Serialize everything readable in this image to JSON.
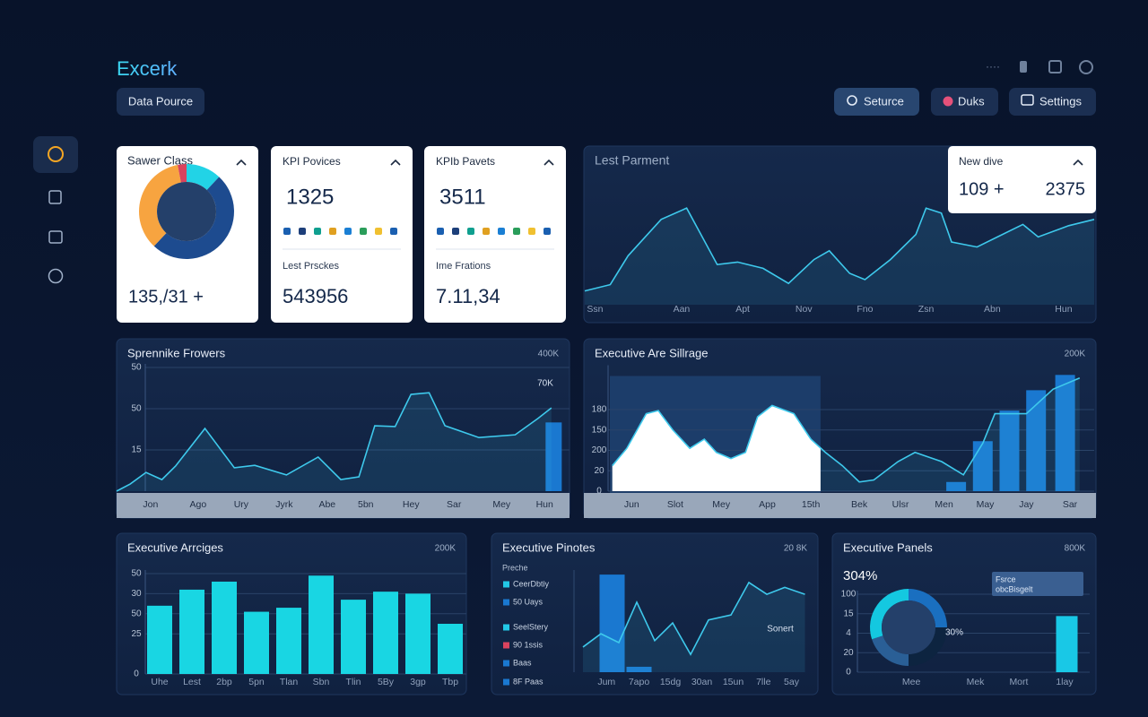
{
  "header": {
    "title": "Excerk",
    "data_source": "Data Pource",
    "buttons": [
      "Seturce",
      "Duks",
      "Settings"
    ]
  },
  "kpis": [
    {
      "title": "KPI Povices",
      "value": "1325",
      "subtitle": "Lest Prsckes",
      "subvalue": "543956"
    },
    {
      "title": "KPIb Pavets",
      "value": "3511",
      "subtitle": "Ime Frations",
      "subvalue": "7.11,34"
    }
  ],
  "chart_data": [
    {
      "type": "pie",
      "title": "Sawer Class",
      "caption": "135,/31 +",
      "values": [
        12,
        50,
        35,
        3
      ],
      "colors": [
        "#22d3e6",
        "#1d4b8f",
        "#f7a440",
        "#d9435e"
      ]
    },
    {
      "type": "line",
      "title": "Lest Parment",
      "color": "#3ec9ec",
      "card": {
        "title": "New dive",
        "values": [
          "109 +",
          "2375"
        ]
      },
      "x": [
        0,
        5,
        8.5,
        15,
        20,
        26,
        30,
        35,
        40,
        45,
        48,
        52,
        55,
        60,
        65,
        67,
        70,
        72,
        77,
        81,
        86,
        89,
        95,
        100
      ],
      "values": [
        11,
        16,
        39,
        68,
        77,
        32,
        34,
        29,
        17,
        36,
        43,
        25,
        20,
        36,
        56,
        77,
        73,
        50,
        46,
        54,
        64,
        54,
        63,
        68
      ],
      "xlim": [
        0,
        100
      ],
      "ylim": [
        0,
        100
      ],
      "xticks": [
        {
          "value": 2,
          "label": "Ssn"
        },
        {
          "value": 19,
          "label": "Aan"
        },
        {
          "value": 31,
          "label": "Apt"
        },
        {
          "value": 43,
          "label": "Nov"
        },
        {
          "value": 55,
          "label": "Fno"
        },
        {
          "value": 67,
          "label": "Zsn"
        },
        {
          "value": 80,
          "label": "Abn"
        },
        {
          "value": 94,
          "label": "Hun"
        }
      ]
    },
    {
      "type": "line",
      "title": "Sprennike Frowers",
      "corner": "400K",
      "annotations": [
        "70K"
      ],
      "color": "#3ec9ec",
      "bar_color": "#1a78d0",
      "grid": true,
      "x": [
        0,
        3,
        6.5,
        10,
        13,
        19.5,
        26,
        30.5,
        37.5,
        44.5,
        49.5,
        53.5,
        57,
        61.5,
        65,
        69,
        72.5,
        80,
        88,
        93,
        96
      ],
      "values": [
        0,
        2.6,
        6.8,
        4.2,
        9.1,
        22.8,
        8.5,
        9.4,
        5.9,
        12.4,
        4.2,
        5.2,
        23.8,
        23.5,
        35.2,
        35.8,
        23.8,
        19.5,
        20.5,
        26.4,
        30.3
      ],
      "bars": {
        "x": [
          96.5
        ],
        "values": [
          25
        ]
      },
      "xlim": [
        0,
        100
      ],
      "ylim": [
        0,
        45
      ],
      "yticks": [
        15,
        {
          "value": 30,
          "label": "50"
        },
        {
          "value": 45,
          "label": "50"
        }
      ],
      "xticks": [
        {
          "value": 7.5,
          "label": "Jon"
        },
        {
          "value": 18,
          "label": "Ago"
        },
        {
          "value": 27.5,
          "label": "Ury"
        },
        {
          "value": 37,
          "label": "Jyrk"
        },
        {
          "value": 46.5,
          "label": "Abe"
        },
        {
          "value": 55,
          "label": "5bn"
        },
        {
          "value": 65,
          "label": "Hey"
        },
        {
          "value": 74.5,
          "label": "Sar"
        },
        {
          "value": 85,
          "label": "Mey"
        },
        {
          "value": 94.5,
          "label": "Hun"
        }
      ]
    },
    {
      "type": "line",
      "title": "Executive Are Sillrage",
      "corner": "200K",
      "color": "#3ec9ec",
      "bar_color": "#1a78d0",
      "grid": true,
      "highlight": [
        0,
        43.5
      ],
      "x": [
        0.5,
        3.5,
        7.5,
        10,
        13,
        16.5,
        19.5,
        22,
        25,
        28,
        30.5,
        33.5,
        38,
        41.5,
        44.5,
        48,
        51.5,
        54.5,
        59.5,
        63,
        68.5,
        73,
        77,
        79.5,
        86,
        91.5,
        97
      ],
      "values": [
        25,
        42,
        76,
        79,
        60,
        42,
        51,
        38,
        32,
        38,
        73,
        84,
        76,
        51,
        38,
        25,
        9,
        11,
        29,
        38,
        29,
        16,
        47,
        76,
        76,
        100,
        111
      ],
      "bars": {
        "x": [
          71.5,
          77,
          82.5,
          88,
          94
        ],
        "values": [
          9,
          49,
          79,
          99,
          114
        ]
      },
      "xlim": [
        0,
        100
      ],
      "ylim": [
        0,
        120
      ],
      "yticks": [
        0,
        20,
        {
          "value": 40,
          "label": "200"
        },
        {
          "value": 60,
          "label": "150"
        },
        {
          "value": 80,
          "label": "180"
        }
      ],
      "xticks": [
        {
          "value": 4.5,
          "label": "Jun"
        },
        {
          "value": 13.5,
          "label": "Slot"
        },
        {
          "value": 23,
          "label": "Mey"
        },
        {
          "value": 32.5,
          "label": "App"
        },
        {
          "value": 41.5,
          "label": "15th"
        },
        {
          "value": 51.5,
          "label": "Bek"
        },
        {
          "value": 60,
          "label": "Ulsr"
        },
        {
          "value": 69,
          "label": "Men"
        },
        {
          "value": 77.5,
          "label": "May"
        },
        {
          "value": 86,
          "label": "Jay"
        },
        {
          "value": 95,
          "label": "Sar"
        }
      ]
    },
    {
      "type": "bar",
      "title": "Executive Arrciges",
      "corner": "200K",
      "color": "#19d6e3",
      "grid": true,
      "categories": [
        "Uhe",
        "Lest",
        "2bp",
        "5pn",
        "Tlan",
        "Sbn",
        "Tlin",
        "5By",
        "3gp",
        "Tbp"
      ],
      "values": [
        34,
        42,
        46,
        31,
        33,
        49,
        37,
        41,
        40,
        25
      ],
      "ylim": [
        0,
        50
      ],
      "yticks": [
        0,
        {
          "value": 20,
          "label": "25"
        },
        {
          "value": 30,
          "label": "50"
        },
        {
          "value": 40,
          "label": "30"
        },
        50
      ]
    },
    {
      "type": "line",
      "title": "Executive Pinotes",
      "corner": "20 8K",
      "annotations": [
        "Sonert"
      ],
      "color": "#3ec9ec",
      "bar_color": "#1a78d0",
      "legend": {
        "title": "Preche",
        "items": [
          {
            "name": "CeerDbtiy",
            "color": "#22c8e6"
          },
          {
            "name": "50 Uays",
            "color": "#1a78d0"
          },
          {
            "name": "SeelStery",
            "color": "#22c8e6"
          },
          {
            "name": "90 1ssis",
            "color": "#d9435e"
          },
          {
            "name": "Baas",
            "color": "#1a78d0"
          },
          {
            "name": "8F Paas",
            "color": "#1a78d0"
          }
        ]
      },
      "x": [
        0,
        8,
        16,
        24,
        32,
        40,
        48,
        56,
        66,
        74,
        82,
        90,
        99
      ],
      "values": [
        25.5,
        39,
        30,
        71,
        32,
        50,
        18,
        53,
        58,
        91,
        79,
        86,
        79
      ],
      "bars": {
        "x": [
          13,
          25
        ],
        "values": [
          99,
          5.5
        ]
      },
      "xlim": [
        0,
        100
      ],
      "ylim": [
        0,
        100
      ],
      "xticks": [
        {
          "value": 10.5,
          "label": "Jum"
        },
        {
          "value": 25,
          "label": "7apo"
        },
        {
          "value": 39,
          "label": "15dg"
        },
        {
          "value": 53,
          "label": "30an"
        },
        {
          "value": 67,
          "label": "15un"
        },
        {
          "value": 80.5,
          "label": "7lle"
        },
        {
          "value": 93,
          "label": "5ay"
        }
      ]
    },
    {
      "type": "bar",
      "title": "Executive Panels",
      "corner": "800K",
      "headline": "304%",
      "annotations": [
        "30%"
      ],
      "tooltip": [
        "Fsrce",
        "obcBisgelt"
      ],
      "bar_color": "#19c8e6",
      "grid": true,
      "donut": {
        "values": [
          25,
          25,
          20,
          30
        ],
        "colors": [
          "#1a6fc0",
          "#0d2440",
          "#2a5f96",
          "#14c8e0"
        ]
      },
      "bars": {
        "x": [
          90
        ],
        "values": [
          72
        ]
      },
      "xlim": [
        0,
        100
      ],
      "ylim": [
        0,
        100
      ],
      "yticks": [
        0,
        {
          "value": 25,
          "label": "20"
        },
        {
          "value": 50,
          "label": "4"
        },
        {
          "value": 75,
          "label": "15"
        },
        100
      ],
      "xticks": [
        {
          "value": 22,
          "label": "Mee"
        },
        {
          "value": 50,
          "label": "Mek"
        },
        {
          "value": 69,
          "label": "Mort"
        },
        {
          "value": 89,
          "label": "1lay"
        }
      ]
    }
  ]
}
